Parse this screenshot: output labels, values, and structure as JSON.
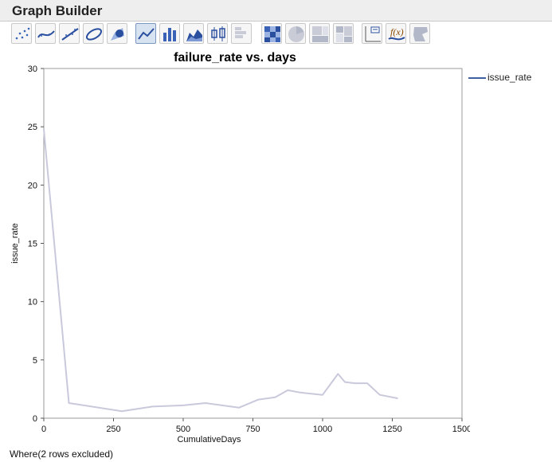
{
  "window": {
    "title": "Graph Builder"
  },
  "toolbar": {
    "buttons": [
      {
        "icon": "points-icon",
        "selected": false
      },
      {
        "icon": "smoother-icon",
        "selected": false
      },
      {
        "icon": "line-of-fit-icon",
        "selected": false
      },
      {
        "icon": "ellipse-icon",
        "selected": false
      },
      {
        "icon": "contour-icon",
        "selected": false
      },
      {
        "icon": "line-icon",
        "selected": true
      },
      {
        "icon": "bar-icon",
        "selected": false
      },
      {
        "icon": "area-icon",
        "selected": false
      },
      {
        "icon": "box-plot-icon",
        "selected": false
      },
      {
        "icon": "histogram-icon",
        "selected": false
      },
      {
        "icon": "heatmap-icon",
        "selected": false
      },
      {
        "icon": "pie-icon",
        "selected": false
      },
      {
        "icon": "treemap-icon",
        "selected": false
      },
      {
        "icon": "mosaic-icon",
        "selected": false
      },
      {
        "icon": "caption-box-icon",
        "selected": false
      },
      {
        "icon": "formula-icon",
        "selected": false
      },
      {
        "icon": "map-shapes-icon",
        "selected": false
      }
    ]
  },
  "legend": {
    "label": "issue_rate",
    "color": "#3f5f9f"
  },
  "footer": {
    "text": "Where(2 rows excluded)"
  },
  "chart_data": {
    "type": "line",
    "title": "failure_rate vs. days",
    "xlabel": "CumulativeDays",
    "ylabel": "issue_rate",
    "xlim": [
      0,
      1500
    ],
    "ylim": [
      0,
      30
    ],
    "xticks": [
      0,
      250,
      500,
      750,
      1000,
      1250,
      1500
    ],
    "yticks": [
      0,
      5,
      10,
      15,
      20,
      25,
      30
    ],
    "grid": false,
    "legend_position": "top-right",
    "line_color": "#c9c9dc",
    "series": [
      {
        "name": "issue_rate",
        "x": [
          0,
          90,
          280,
          390,
          500,
          580,
          700,
          770,
          830,
          875,
          920,
          1000,
          1055,
          1080,
          1115,
          1160,
          1205,
          1270
        ],
        "y": [
          24.8,
          1.3,
          0.6,
          1.0,
          1.1,
          1.3,
          0.9,
          1.6,
          1.8,
          2.4,
          2.2,
          2.0,
          3.8,
          3.1,
          3.0,
          3.0,
          2.0,
          1.7
        ]
      }
    ]
  }
}
